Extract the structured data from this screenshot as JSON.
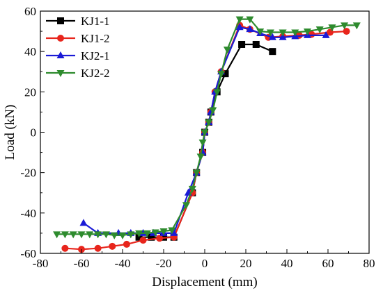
{
  "chart_data": {
    "type": "line",
    "xlabel": "Displacement (mm)",
    "ylabel": "Load (kN)",
    "xlim": [
      -80,
      80
    ],
    "ylim": [
      -60,
      60
    ],
    "x_ticks": [
      -80,
      -60,
      -40,
      -20,
      0,
      20,
      40,
      60,
      80
    ],
    "y_ticks": [
      -60,
      -40,
      -20,
      0,
      20,
      40,
      60
    ],
    "grid": false,
    "legend_position": "top-left",
    "series": [
      {
        "name": "KJ1-1",
        "color": "#000000",
        "marker": "square",
        "points": [
          [
            -32,
            -52
          ],
          [
            -26,
            -52
          ],
          [
            -20,
            -52
          ],
          [
            -15,
            -52
          ],
          [
            -6,
            -30
          ],
          [
            -4,
            -20
          ],
          [
            -1,
            -10
          ],
          [
            0,
            0
          ],
          [
            2,
            5
          ],
          [
            3,
            10
          ],
          [
            6,
            20
          ],
          [
            10,
            29
          ],
          [
            18,
            43.5
          ],
          [
            25,
            43.5
          ],
          [
            33,
            40
          ]
        ]
      },
      {
        "name": "KJ1-2",
        "color": "#e8251c",
        "marker": "circle",
        "points": [
          [
            -68,
            -57.5
          ],
          [
            -60,
            -58
          ],
          [
            -52,
            -57.5
          ],
          [
            -45,
            -56.5
          ],
          [
            -38,
            -55.5
          ],
          [
            -30,
            -53.5
          ],
          [
            -22,
            -52.5
          ],
          [
            -15,
            -52
          ],
          [
            -6,
            -30
          ],
          [
            -4,
            -20
          ],
          [
            -1,
            -10
          ],
          [
            0,
            0
          ],
          [
            2,
            5
          ],
          [
            3,
            10
          ],
          [
            5,
            20
          ],
          [
            8,
            30
          ],
          [
            17,
            53
          ],
          [
            22,
            51
          ],
          [
            31,
            47
          ],
          [
            38,
            47.5
          ],
          [
            46,
            48
          ],
          [
            52,
            48.5
          ],
          [
            61,
            49.5
          ],
          [
            69,
            50
          ]
        ]
      },
      {
        "name": "KJ2-1",
        "color": "#1a1ad6",
        "marker": "triangle-up",
        "points": [
          [
            -59,
            -45
          ],
          [
            -52,
            -50
          ],
          [
            -42,
            -50
          ],
          [
            -36,
            -50
          ],
          [
            -30,
            -50
          ],
          [
            -25,
            -50
          ],
          [
            -20,
            -50
          ],
          [
            -15,
            -50
          ],
          [
            -8,
            -30
          ],
          [
            -4,
            -20
          ],
          [
            -1,
            -10
          ],
          [
            0,
            0
          ],
          [
            2,
            5
          ],
          [
            3,
            10
          ],
          [
            5,
            20
          ],
          [
            8,
            30
          ],
          [
            17,
            52
          ],
          [
            22,
            51
          ],
          [
            27,
            49
          ],
          [
            33,
            47
          ],
          [
            38,
            47
          ],
          [
            44,
            47.5
          ],
          [
            50,
            48
          ],
          [
            59,
            48
          ]
        ]
      },
      {
        "name": "KJ2-2",
        "color": "#2e8b2e",
        "marker": "triangle-down",
        "points": [
          [
            -72,
            -50.5
          ],
          [
            -68,
            -50.5
          ],
          [
            -64,
            -50.5
          ],
          [
            -60,
            -50.5
          ],
          [
            -56,
            -50.5
          ],
          [
            -52,
            -50.5
          ],
          [
            -48,
            -50.5
          ],
          [
            -44,
            -51
          ],
          [
            -40,
            -51
          ],
          [
            -36,
            -50.5
          ],
          [
            -32,
            -50
          ],
          [
            -28,
            -50
          ],
          [
            -24,
            -49.5
          ],
          [
            -20,
            -49
          ],
          [
            -16,
            -48.5
          ],
          [
            -9,
            -36
          ],
          [
            -6,
            -28
          ],
          [
            -4,
            -20
          ],
          [
            -2,
            -12
          ],
          [
            -1,
            -5
          ],
          [
            0,
            0
          ],
          [
            2,
            5
          ],
          [
            4,
            11
          ],
          [
            6,
            20
          ],
          [
            8,
            29
          ],
          [
            11,
            41
          ],
          [
            17,
            56
          ],
          [
            22,
            56
          ],
          [
            27,
            50
          ],
          [
            32,
            49.5
          ],
          [
            38,
            49.5
          ],
          [
            44,
            49.5
          ],
          [
            50,
            50
          ],
          [
            56,
            51
          ],
          [
            62,
            52
          ],
          [
            68,
            53
          ],
          [
            74,
            53
          ]
        ]
      }
    ]
  }
}
